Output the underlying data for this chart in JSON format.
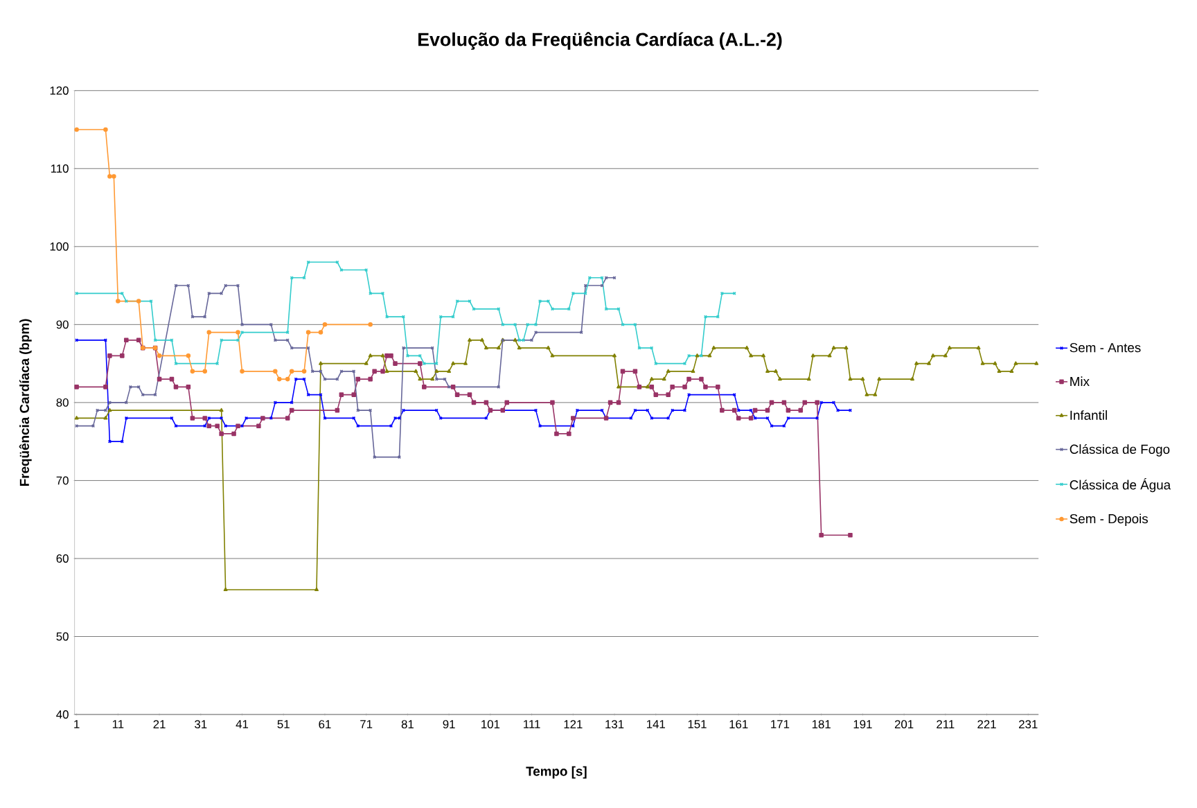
{
  "chart_data": {
    "type": "line",
    "title": "Evolução da Freqüência Cardíaca (A.L.-2)",
    "xlabel": "Tempo [s]",
    "ylabel": "Freqüência Cardíaca (bpm)",
    "xlim": [
      0.5,
      233.5
    ],
    "ylim": [
      40,
      120
    ],
    "xticks": [
      1,
      11,
      21,
      31,
      41,
      51,
      61,
      71,
      81,
      91,
      101,
      111,
      121,
      131,
      141,
      151,
      161,
      171,
      181,
      191,
      201,
      211,
      221,
      231
    ],
    "yticks": [
      40,
      50,
      60,
      70,
      80,
      90,
      100,
      110,
      120
    ],
    "grid": "y",
    "legend": "right",
    "series": [
      {
        "name": "Sem - Antes",
        "color": "#0000ff",
        "marker": "cross",
        "x": [
          1,
          8,
          9,
          12,
          13,
          24,
          25,
          32,
          33,
          36,
          37,
          41,
          42,
          48,
          49,
          53,
          54,
          56,
          57,
          60,
          61,
          68,
          69,
          77,
          78,
          79,
          80,
          88,
          89,
          100,
          101,
          112,
          113,
          121,
          122,
          128,
          129,
          135,
          136,
          139,
          140,
          144,
          145,
          148,
          149,
          160,
          161,
          164,
          165,
          168,
          169,
          172,
          173,
          180,
          181,
          184,
          185,
          188
        ],
        "values": [
          88,
          88,
          75,
          75,
          78,
          78,
          77,
          77,
          78,
          78,
          77,
          77,
          78,
          78,
          80,
          80,
          83,
          83,
          81,
          81,
          78,
          78,
          77,
          77,
          78,
          78,
          79,
          79,
          78,
          78,
          79,
          79,
          77,
          77,
          79,
          79,
          78,
          78,
          79,
          79,
          78,
          78,
          79,
          79,
          81,
          81,
          79,
          79,
          78,
          78,
          77,
          77,
          78,
          78,
          80,
          80,
          79,
          79
        ]
      },
      {
        "name": "Mix",
        "color": "#993366",
        "marker": "square",
        "x": [
          1,
          8,
          9,
          12,
          13,
          16,
          17,
          20,
          21,
          24,
          25,
          28,
          29,
          32,
          33,
          35,
          36,
          39,
          40,
          45,
          46,
          52,
          53,
          64,
          65,
          68,
          69,
          72,
          73,
          75,
          76,
          77,
          78,
          84,
          85,
          92,
          93,
          96,
          97,
          100,
          101,
          104,
          105,
          116,
          117,
          120,
          121,
          129,
          130,
          132,
          133,
          136,
          137,
          140,
          141,
          144,
          145,
          148,
          149,
          152,
          153,
          156,
          157,
          160,
          161,
          164,
          165,
          168,
          169,
          172,
          173,
          176,
          177,
          180,
          181,
          188
        ],
        "values": [
          82,
          82,
          86,
          86,
          88,
          88,
          87,
          87,
          83,
          83,
          82,
          82,
          78,
          78,
          77,
          77,
          76,
          76,
          77,
          77,
          78,
          78,
          79,
          79,
          81,
          81,
          83,
          83,
          84,
          84,
          86,
          86,
          85,
          85,
          82,
          82,
          81,
          81,
          80,
          80,
          79,
          79,
          80,
          80,
          76,
          76,
          78,
          78,
          80,
          80,
          84,
          84,
          82,
          82,
          81,
          81,
          82,
          82,
          83,
          83,
          82,
          82,
          79,
          79,
          78,
          78,
          79,
          79,
          80,
          80,
          79,
          79,
          80,
          80,
          63,
          63
        ]
      },
      {
        "name": "Infantil",
        "color": "#808000",
        "marker": "triangle",
        "x": [
          1,
          8,
          9,
          36,
          37,
          59,
          60,
          71,
          72,
          75,
          76,
          83,
          84,
          87,
          88,
          91,
          92,
          95,
          96,
          99,
          100,
          103,
          104,
          107,
          108,
          115,
          116,
          131,
          132,
          139,
          140,
          143,
          144,
          150,
          151,
          154,
          155,
          163,
          164,
          167,
          168,
          170,
          171,
          178,
          179,
          183,
          184,
          187,
          188,
          191,
          192,
          194,
          195,
          203,
          204,
          207,
          208,
          211,
          212,
          219,
          220,
          223,
          224,
          227,
          228,
          233
        ],
        "values": [
          78,
          78,
          79,
          79,
          56,
          56,
          85,
          85,
          86,
          86,
          84,
          84,
          83,
          83,
          84,
          84,
          85,
          85,
          88,
          88,
          87,
          87,
          88,
          88,
          87,
          87,
          86,
          86,
          82,
          82,
          83,
          83,
          84,
          84,
          86,
          86,
          87,
          87,
          86,
          86,
          84,
          84,
          83,
          83,
          86,
          86,
          87,
          87,
          83,
          83,
          81,
          81,
          83,
          83,
          85,
          85,
          86,
          86,
          87,
          87,
          85,
          85,
          84,
          84,
          85,
          85
        ]
      },
      {
        "name": "Clássica de Fogo",
        "color": "#666699",
        "marker": "cross",
        "x": [
          1,
          5,
          6,
          8,
          9,
          13,
          14,
          16,
          17,
          20,
          25,
          28,
          29,
          32,
          33,
          36,
          37,
          40,
          41,
          48,
          49,
          52,
          53,
          57,
          58,
          60,
          61,
          64,
          65,
          68,
          69,
          72,
          73,
          79,
          80,
          87,
          88,
          90,
          91,
          103,
          104,
          111,
          112,
          123,
          124,
          128,
          129,
          131
        ],
        "values": [
          77,
          77,
          79,
          79,
          80,
          80,
          82,
          82,
          81,
          81,
          95,
          95,
          91,
          91,
          94,
          94,
          95,
          95,
          90,
          90,
          88,
          88,
          87,
          87,
          84,
          84,
          83,
          83,
          84,
          84,
          79,
          79,
          73,
          73,
          87,
          87,
          83,
          83,
          82,
          82,
          88,
          88,
          89,
          89,
          95,
          95,
          96,
          96
        ]
      },
      {
        "name": "Clássica de Água",
        "color": "#33cccc",
        "marker": "cross",
        "x": [
          1,
          12,
          13,
          19,
          20,
          24,
          25,
          35,
          36,
          40,
          41,
          52,
          53,
          56,
          57,
          64,
          65,
          71,
          72,
          75,
          76,
          80,
          81,
          84,
          85,
          88,
          89,
          92,
          93,
          96,
          97,
          103,
          104,
          107,
          108,
          109,
          110,
          112,
          113,
          115,
          116,
          120,
          121,
          124,
          125,
          128,
          129,
          132,
          133,
          136,
          137,
          140,
          141,
          148,
          149,
          152,
          153,
          156,
          157,
          160
        ],
        "values": [
          94,
          94,
          93,
          93,
          88,
          88,
          85,
          85,
          88,
          88,
          89,
          89,
          96,
          96,
          98,
          98,
          97,
          97,
          94,
          94,
          91,
          91,
          86,
          86,
          85,
          85,
          91,
          91,
          93,
          93,
          92,
          92,
          90,
          90,
          88,
          88,
          90,
          90,
          93,
          93,
          92,
          92,
          94,
          94,
          96,
          96,
          92,
          92,
          90,
          90,
          87,
          87,
          85,
          85,
          86,
          86,
          91,
          91,
          94,
          94
        ]
      },
      {
        "name": "Sem - Depois",
        "color": "#ff9933",
        "marker": "circle",
        "x": [
          1,
          8,
          9,
          10,
          11,
          16,
          17,
          20,
          21,
          28,
          29,
          32,
          33,
          40,
          41,
          49,
          50,
          52,
          53,
          56,
          57,
          60,
          61,
          72
        ],
        "values": [
          115,
          115,
          109,
          109,
          93,
          93,
          87,
          87,
          86,
          86,
          84,
          84,
          89,
          89,
          84,
          84,
          83,
          83,
          84,
          84,
          89,
          89,
          90,
          90
        ]
      }
    ]
  }
}
